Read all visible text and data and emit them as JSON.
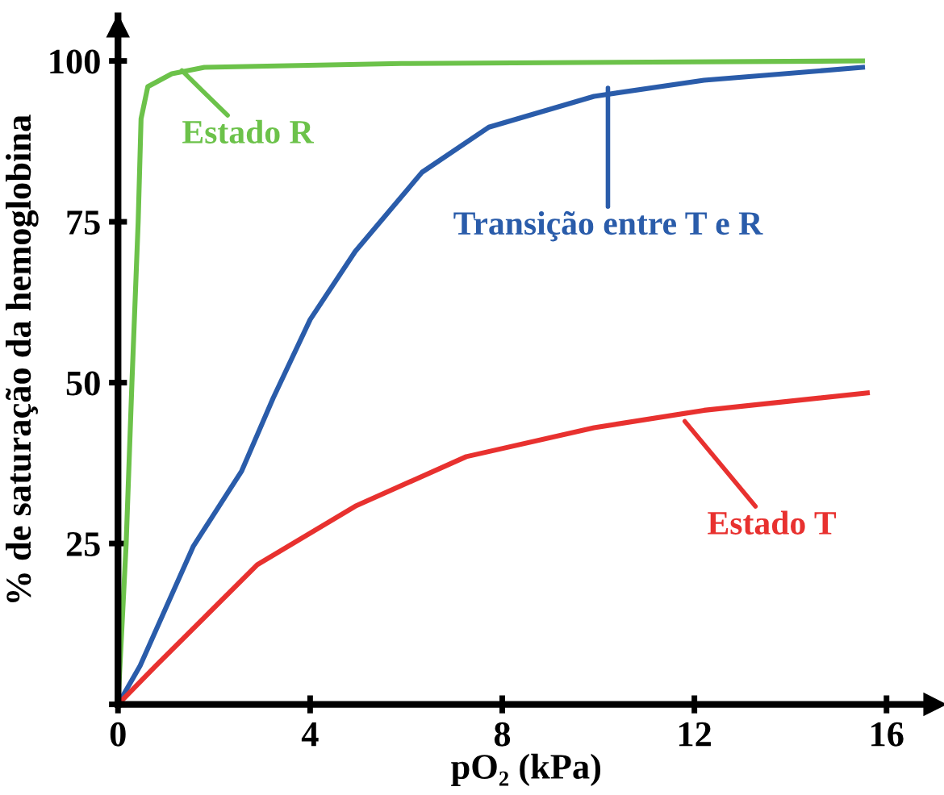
{
  "chart_data": {
    "type": "line",
    "xlabel": "pO₂ (kPa)",
    "ylabel": "% de saturação da hemoglobina",
    "xlim": [
      0,
      17
    ],
    "ylim": [
      0,
      107
    ],
    "xticks": [
      0,
      4,
      8,
      12,
      16
    ],
    "yticks": [
      {
        "value": 0,
        "label": null
      },
      25,
      50,
      75,
      100
    ],
    "grid": false,
    "legend": false,
    "marker": "none",
    "line_style": "solid",
    "series": [
      {
        "color": "#6cc24a",
        "x": [
          0,
          0.17,
          0.29,
          0.42,
          0.48,
          0.62,
          1.12,
          1.8,
          5.9,
          15.5
        ],
        "values": [
          0,
          25,
          50,
          75,
          91,
          96,
          98,
          99,
          99.6,
          100
        ]
      },
      {
        "color": "#2a5caa",
        "x": [
          0,
          0.46,
          1.57,
          2.57,
          3.23,
          4.0,
          4.94,
          6.33,
          7.72,
          9.91,
          12.2,
          15.5
        ],
        "values": [
          0,
          6,
          24.6,
          36.2,
          47.6,
          59.8,
          70.4,
          82.7,
          89.7,
          94.5,
          97,
          99
        ]
      },
      {
        "color": "#e8312f",
        "x": [
          0,
          0.79,
          2.9,
          4.94,
          7.25,
          9.91,
          12.2,
          15.6
        ],
        "values": [
          0,
          6,
          21.7,
          30.8,
          38.5,
          43,
          45.7,
          48.4
        ]
      }
    ],
    "annotations": [
      {
        "text": "Estado R",
        "x": 1.33,
        "y": 98.5
      },
      {
        "text": "Transição entre T e R",
        "x": 10.2,
        "y": 95.8
      },
      {
        "text": "Estado T",
        "x": 11.8,
        "y": 44
      }
    ]
  }
}
